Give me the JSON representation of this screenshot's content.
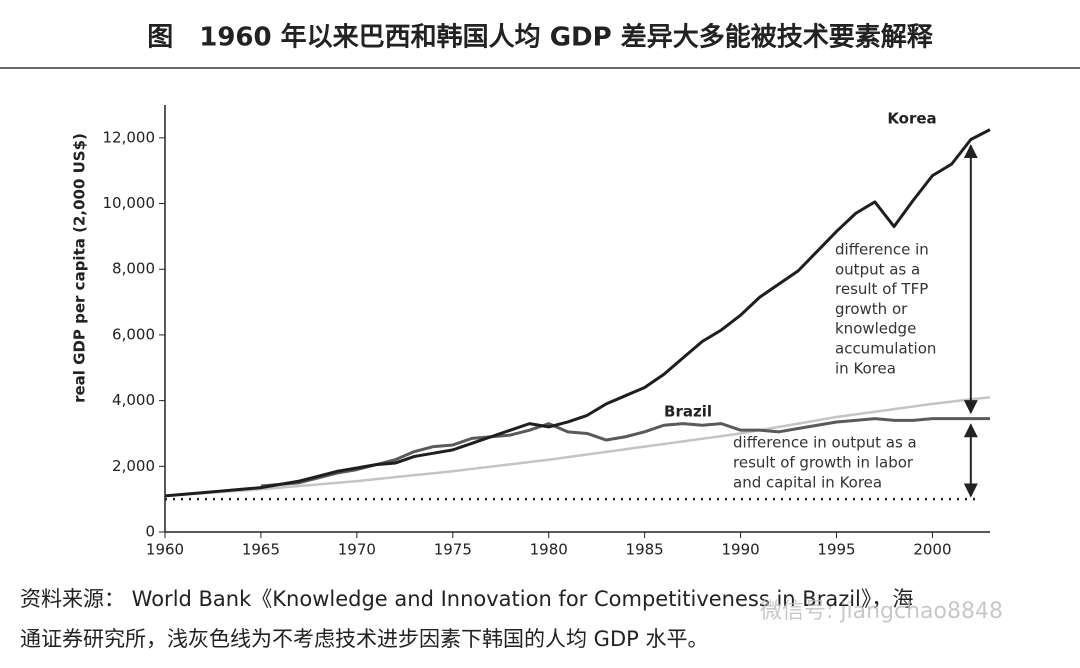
{
  "chart_data": {
    "type": "line",
    "title": "图　1960 年以来巴西和韩国人均 GDP 差异大多能被技术要素解释",
    "y_label": "real GDP per capita (2,000 US$)",
    "x": [
      1960,
      1961,
      1962,
      1963,
      1964,
      1965,
      1966,
      1967,
      1968,
      1969,
      1970,
      1971,
      1972,
      1973,
      1974,
      1975,
      1976,
      1977,
      1978,
      1979,
      1980,
      1981,
      1982,
      1983,
      1984,
      1985,
      1986,
      1987,
      1988,
      1989,
      1990,
      1991,
      1992,
      1993,
      1994,
      1995,
      1996,
      1997,
      1998,
      1999,
      2000,
      2001,
      2002,
      2003
    ],
    "series": [
      {
        "name": "Korea",
        "color": "#1e1e1e",
        "values": [
          1100,
          1150,
          1200,
          1250,
          1300,
          1350,
          1450,
          1550,
          1700,
          1850,
          1950,
          2050,
          2100,
          2300,
          2400,
          2500,
          2700,
          2900,
          3100,
          3300,
          3200,
          3350,
          3550,
          3900,
          4150,
          4400,
          4800,
          5300,
          5800,
          6150,
          6600,
          7150,
          7550,
          7950,
          8550,
          9150,
          9700,
          10050,
          9300,
          10100,
          10850,
          11200,
          11950,
          12250
        ]
      },
      {
        "name": "Brazil",
        "color": "#5a5a5a",
        "values": [
          null,
          null,
          null,
          null,
          null,
          1400,
          1450,
          1500,
          1650,
          1800,
          1900,
          2050,
          2200,
          2450,
          2600,
          2650,
          2850,
          2900,
          2950,
          3100,
          3300,
          3050,
          3000,
          2800,
          2900,
          3050,
          3250,
          3300,
          3250,
          3300,
          3100,
          3100,
          3050,
          3150,
          3250,
          3350,
          3400,
          3450,
          3400,
          3400,
          3450,
          3450,
          3450,
          3450
        ]
      },
      {
        "color": "#c4c4c4",
        "values": [
          1100,
          1140,
          1180,
          1220,
          1260,
          1300,
          1350,
          1400,
          1450,
          1500,
          1550,
          1610,
          1670,
          1730,
          1790,
          1850,
          1920,
          1990,
          2060,
          2130,
          2200,
          2280,
          2360,
          2440,
          2520,
          2600,
          2680,
          2760,
          2840,
          2920,
          3000,
          3100,
          3200,
          3300,
          3400,
          3500,
          3580,
          3660,
          3740,
          3820,
          3900,
          3970,
          4040,
          4100
        ]
      }
    ],
    "baseline": 1000,
    "xlim": [
      1960,
      2003
    ],
    "ylim": [
      0,
      13000
    ],
    "xticks": [
      1960,
      1965,
      1970,
      1975,
      1980,
      1985,
      1990,
      1995,
      2000
    ],
    "yticks": [
      0,
      {
        "value": 2000,
        "label": "2,000"
      },
      {
        "value": 4000,
        "label": "4,000"
      },
      {
        "value": 6000,
        "label": "6,000"
      },
      {
        "value": 8000,
        "label": "8,000"
      },
      {
        "value": 10000,
        "label": "10,000"
      },
      {
        "value": 12000,
        "label": "12,000"
      }
    ],
    "annotations": [
      [
        "difference in",
        "output as a",
        "result of TFP",
        "growth or",
        "knowledge",
        "accumulation",
        "in Korea"
      ],
      [
        "difference in output as a",
        "result of growth in labor",
        "and capital in Korea"
      ]
    ],
    "source": [
      "资料来源： World Bank《Knowledge and Innovation for Competitiveness in Brazil》，海",
      "通证券研究所，浅灰色线为不考虑技术进步因素下韩国的人均 GDP 水平。"
    ],
    "watermark": "微信号: jiangchao8848"
  }
}
